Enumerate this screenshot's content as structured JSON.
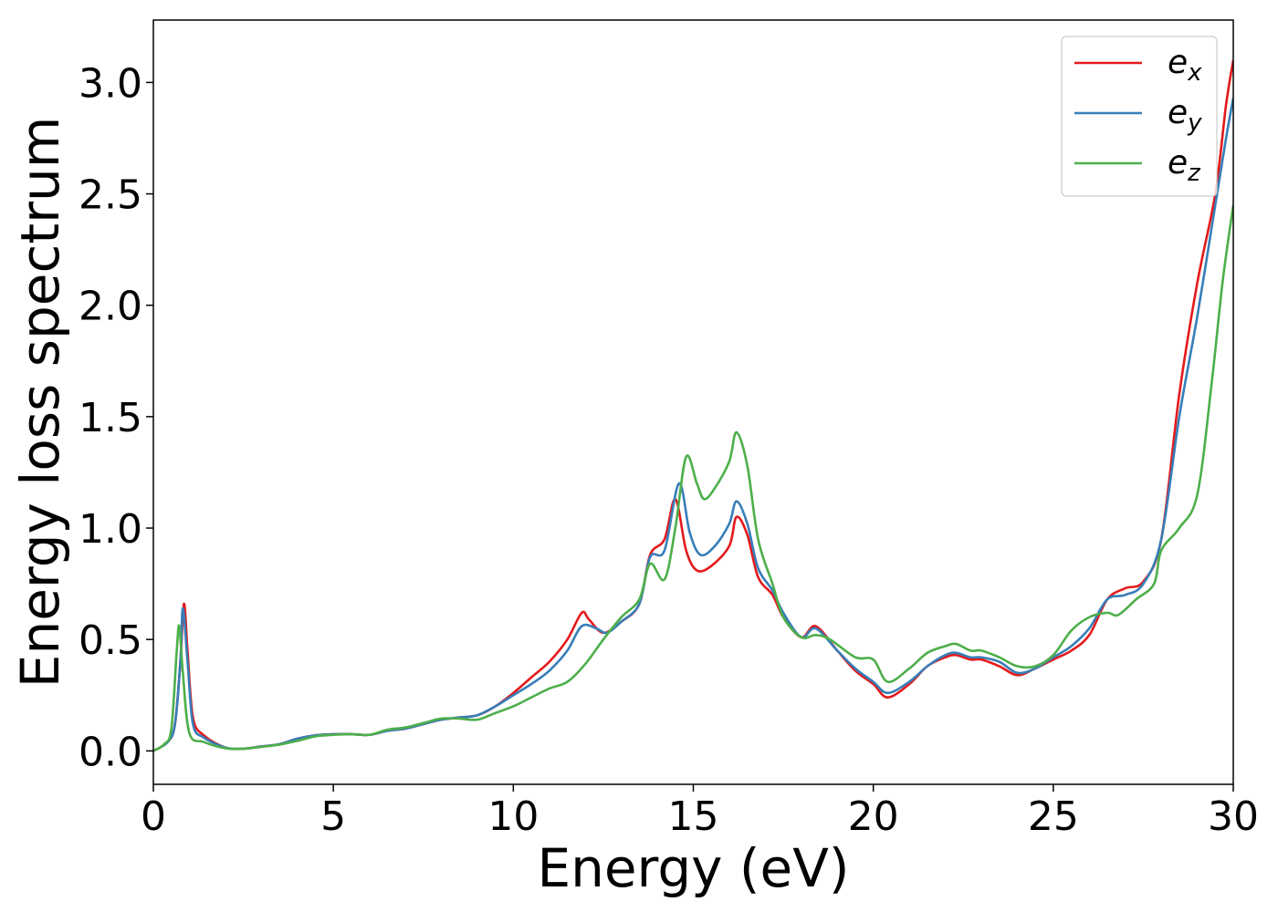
{
  "chart_data": {
    "type": "line",
    "title": "",
    "xlabel": "Energy (eV)",
    "ylabel": "Energy loss spectrum",
    "xlim": [
      0,
      30
    ],
    "ylim": [
      -0.15,
      3.28
    ],
    "xticks": [
      0,
      5,
      10,
      15,
      20,
      25,
      30
    ],
    "yticks": [
      0.0,
      0.5,
      1.0,
      1.5,
      2.0,
      2.5,
      3.0
    ],
    "xtick_labels": [
      "0",
      "5",
      "10",
      "15",
      "20",
      "25",
      "30"
    ],
    "ytick_labels": [
      "0.0",
      "0.5",
      "1.0",
      "1.5",
      "2.0",
      "2.5",
      "3.0"
    ],
    "grid": false,
    "legend": "top-right",
    "series": [
      {
        "name": "ex",
        "label_main": "e",
        "label_sub": "x",
        "color": "#e41a1c",
        "points": [
          [
            0,
            0.0
          ],
          [
            0.4,
            0.04
          ],
          [
            0.6,
            0.12
          ],
          [
            0.75,
            0.4
          ],
          [
            0.85,
            0.66
          ],
          [
            0.95,
            0.45
          ],
          [
            1.1,
            0.15
          ],
          [
            1.4,
            0.07
          ],
          [
            2,
            0.015
          ],
          [
            2.5,
            0.01
          ],
          [
            3,
            0.02
          ],
          [
            3.5,
            0.03
          ],
          [
            4,
            0.055
          ],
          [
            4.5,
            0.07
          ],
          [
            5,
            0.075
          ],
          [
            5.5,
            0.075
          ],
          [
            6,
            0.072
          ],
          [
            6.5,
            0.09
          ],
          [
            7,
            0.1
          ],
          [
            7.5,
            0.12
          ],
          [
            8,
            0.14
          ],
          [
            8.5,
            0.15
          ],
          [
            9,
            0.16
          ],
          [
            9.5,
            0.2
          ],
          [
            10,
            0.26
          ],
          [
            10.5,
            0.33
          ],
          [
            11,
            0.4
          ],
          [
            11.5,
            0.5
          ],
          [
            11.9,
            0.62
          ],
          [
            12.1,
            0.59
          ],
          [
            12.5,
            0.53
          ],
          [
            13,
            0.58
          ],
          [
            13.5,
            0.66
          ],
          [
            13.8,
            0.88
          ],
          [
            14.2,
            0.95
          ],
          [
            14.5,
            1.13
          ],
          [
            14.8,
            0.9
          ],
          [
            15.1,
            0.81
          ],
          [
            15.5,
            0.83
          ],
          [
            16,
            0.92
          ],
          [
            16.2,
            1.05
          ],
          [
            16.5,
            0.97
          ],
          [
            16.8,
            0.78
          ],
          [
            17.2,
            0.7
          ],
          [
            17.5,
            0.6
          ],
          [
            18,
            0.51
          ],
          [
            18.4,
            0.56
          ],
          [
            19,
            0.45
          ],
          [
            19.5,
            0.36
          ],
          [
            20,
            0.3
          ],
          [
            20.4,
            0.24
          ],
          [
            21,
            0.3
          ],
          [
            21.5,
            0.38
          ],
          [
            22,
            0.42
          ],
          [
            22.3,
            0.43
          ],
          [
            22.7,
            0.41
          ],
          [
            23,
            0.41
          ],
          [
            23.5,
            0.38
          ],
          [
            24,
            0.34
          ],
          [
            24.5,
            0.37
          ],
          [
            25,
            0.41
          ],
          [
            25.5,
            0.45
          ],
          [
            26,
            0.52
          ],
          [
            26.5,
            0.68
          ],
          [
            27,
            0.73
          ],
          [
            27.5,
            0.76
          ],
          [
            28,
            0.95
          ],
          [
            28.5,
            1.6
          ],
          [
            29,
            2.1
          ],
          [
            29.5,
            2.5
          ],
          [
            29.8,
            2.9
          ],
          [
            30,
            3.1
          ]
        ]
      },
      {
        "name": "ey",
        "label_main": "e",
        "label_sub": "y",
        "color": "#377eb8",
        "points": [
          [
            0,
            0.0
          ],
          [
            0.4,
            0.04
          ],
          [
            0.6,
            0.12
          ],
          [
            0.75,
            0.4
          ],
          [
            0.82,
            0.64
          ],
          [
            0.95,
            0.4
          ],
          [
            1.1,
            0.12
          ],
          [
            1.4,
            0.06
          ],
          [
            2,
            0.015
          ],
          [
            2.5,
            0.01
          ],
          [
            3,
            0.02
          ],
          [
            3.5,
            0.03
          ],
          [
            4,
            0.055
          ],
          [
            4.5,
            0.07
          ],
          [
            5,
            0.075
          ],
          [
            5.5,
            0.075
          ],
          [
            6,
            0.072
          ],
          [
            6.5,
            0.09
          ],
          [
            7,
            0.1
          ],
          [
            7.5,
            0.12
          ],
          [
            8,
            0.14
          ],
          [
            8.5,
            0.15
          ],
          [
            9,
            0.16
          ],
          [
            9.5,
            0.2
          ],
          [
            10,
            0.25
          ],
          [
            10.5,
            0.3
          ],
          [
            11,
            0.36
          ],
          [
            11.5,
            0.45
          ],
          [
            11.9,
            0.56
          ],
          [
            12.3,
            0.55
          ],
          [
            12.6,
            0.53
          ],
          [
            13,
            0.58
          ],
          [
            13.5,
            0.66
          ],
          [
            13.8,
            0.87
          ],
          [
            14.2,
            0.9
          ],
          [
            14.6,
            1.2
          ],
          [
            14.9,
            0.98
          ],
          [
            15.2,
            0.88
          ],
          [
            15.6,
            0.92
          ],
          [
            16,
            1.02
          ],
          [
            16.2,
            1.12
          ],
          [
            16.5,
            1.02
          ],
          [
            16.8,
            0.82
          ],
          [
            17.2,
            0.72
          ],
          [
            17.5,
            0.62
          ],
          [
            18,
            0.51
          ],
          [
            18.4,
            0.55
          ],
          [
            19,
            0.45
          ],
          [
            19.5,
            0.37
          ],
          [
            20,
            0.31
          ],
          [
            20.4,
            0.26
          ],
          [
            21,
            0.31
          ],
          [
            21.5,
            0.38
          ],
          [
            22,
            0.43
          ],
          [
            22.3,
            0.44
          ],
          [
            22.7,
            0.42
          ],
          [
            23,
            0.42
          ],
          [
            23.5,
            0.4
          ],
          [
            24,
            0.35
          ],
          [
            24.5,
            0.37
          ],
          [
            25,
            0.42
          ],
          [
            25.5,
            0.47
          ],
          [
            26,
            0.55
          ],
          [
            26.5,
            0.68
          ],
          [
            27,
            0.7
          ],
          [
            27.5,
            0.75
          ],
          [
            28,
            0.95
          ],
          [
            28.5,
            1.5
          ],
          [
            29,
            1.95
          ],
          [
            29.5,
            2.45
          ],
          [
            29.8,
            2.75
          ],
          [
            30,
            2.93
          ]
        ]
      },
      {
        "name": "ez",
        "label_main": "e",
        "label_sub": "z",
        "color": "#4daf4a",
        "points": [
          [
            0,
            0.0
          ],
          [
            0.3,
            0.03
          ],
          [
            0.5,
            0.1
          ],
          [
            0.65,
            0.45
          ],
          [
            0.72,
            0.56
          ],
          [
            0.82,
            0.35
          ],
          [
            1,
            0.08
          ],
          [
            1.4,
            0.04
          ],
          [
            2,
            0.012
          ],
          [
            2.5,
            0.01
          ],
          [
            3,
            0.018
          ],
          [
            3.5,
            0.028
          ],
          [
            4,
            0.045
          ],
          [
            4.5,
            0.065
          ],
          [
            5,
            0.072
          ],
          [
            5.5,
            0.075
          ],
          [
            6,
            0.072
          ],
          [
            6.5,
            0.095
          ],
          [
            7,
            0.105
          ],
          [
            7.5,
            0.125
          ],
          [
            8,
            0.145
          ],
          [
            8.5,
            0.145
          ],
          [
            9,
            0.14
          ],
          [
            9.5,
            0.17
          ],
          [
            10,
            0.2
          ],
          [
            10.5,
            0.24
          ],
          [
            11,
            0.28
          ],
          [
            11.5,
            0.31
          ],
          [
            12,
            0.39
          ],
          [
            12.5,
            0.5
          ],
          [
            13,
            0.6
          ],
          [
            13.5,
            0.68
          ],
          [
            13.8,
            0.84
          ],
          [
            14.2,
            0.77
          ],
          [
            14.5,
            1.0
          ],
          [
            14.8,
            1.32
          ],
          [
            15.1,
            1.2
          ],
          [
            15.3,
            1.13
          ],
          [
            15.6,
            1.18
          ],
          [
            16,
            1.3
          ],
          [
            16.2,
            1.43
          ],
          [
            16.5,
            1.28
          ],
          [
            16.8,
            0.95
          ],
          [
            17.2,
            0.75
          ],
          [
            17.5,
            0.6
          ],
          [
            18,
            0.51
          ],
          [
            18.4,
            0.52
          ],
          [
            18.8,
            0.5
          ],
          [
            19.5,
            0.42
          ],
          [
            20,
            0.41
          ],
          [
            20.4,
            0.31
          ],
          [
            21,
            0.37
          ],
          [
            21.5,
            0.44
          ],
          [
            22,
            0.47
          ],
          [
            22.3,
            0.48
          ],
          [
            22.7,
            0.45
          ],
          [
            23,
            0.45
          ],
          [
            23.5,
            0.42
          ],
          [
            24,
            0.38
          ],
          [
            24.5,
            0.38
          ],
          [
            25,
            0.43
          ],
          [
            25.5,
            0.54
          ],
          [
            26,
            0.6
          ],
          [
            26.5,
            0.62
          ],
          [
            26.8,
            0.61
          ],
          [
            27.3,
            0.68
          ],
          [
            27.8,
            0.75
          ],
          [
            28,
            0.9
          ],
          [
            28.5,
            1.0
          ],
          [
            29,
            1.15
          ],
          [
            29.4,
            1.65
          ],
          [
            29.7,
            2.1
          ],
          [
            30,
            2.45
          ]
        ]
      }
    ]
  }
}
